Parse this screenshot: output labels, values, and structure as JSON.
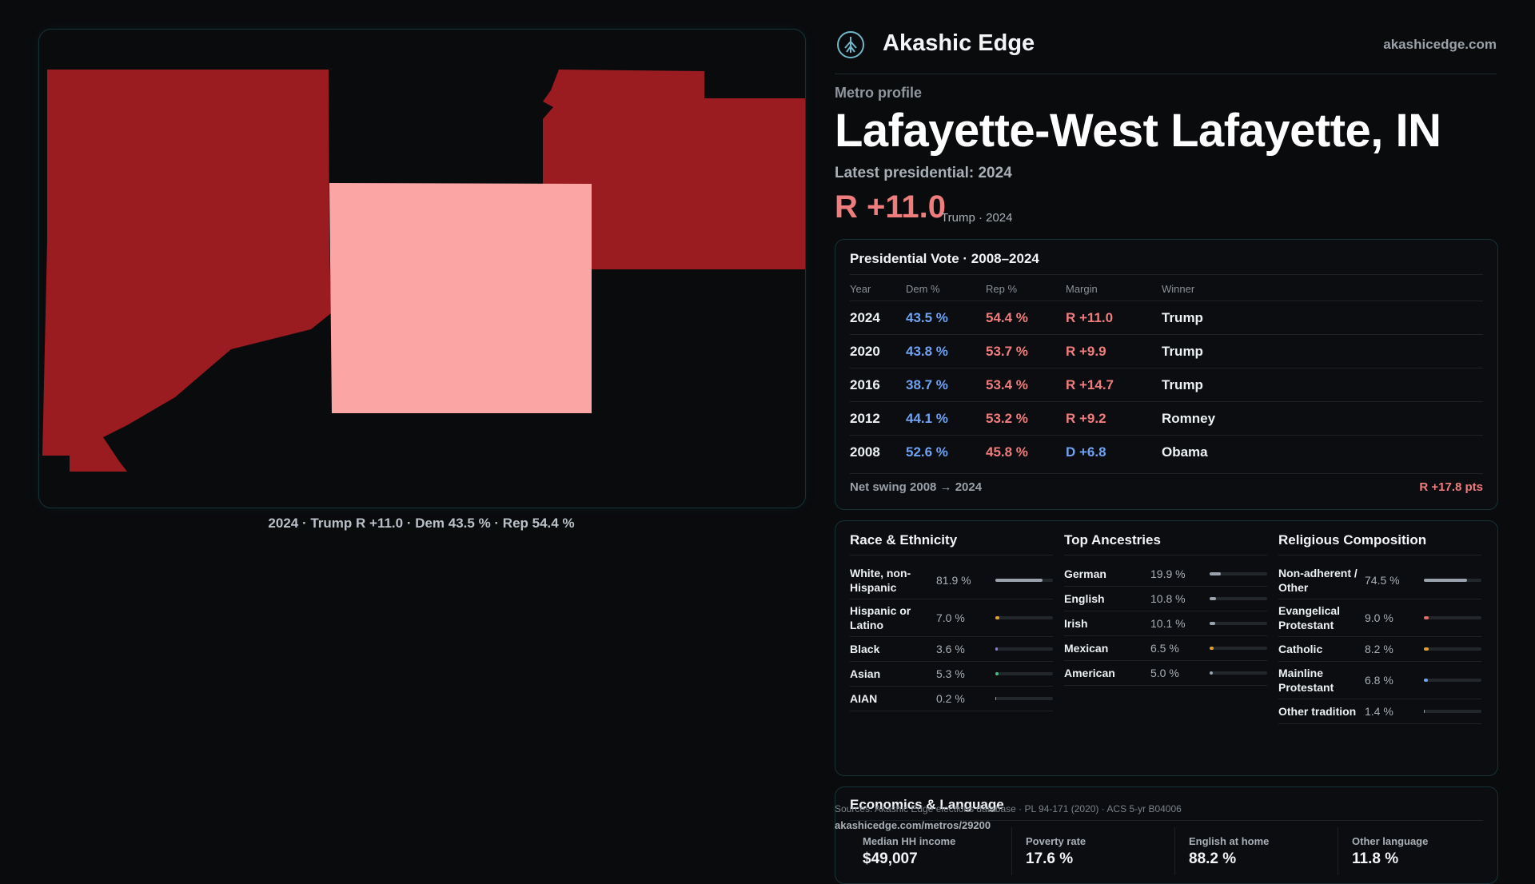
{
  "map": {
    "caption": "2024 · Trump R +11.0 · Dem 43.5 % · Rep 54.4 %",
    "colors": {
      "dark_red": "#9b1c20",
      "light_red": "#fca5a5"
    }
  },
  "header": {
    "brand": "Akashic Edge",
    "site": "akashicedge.com",
    "logo_icon": "tree-emblem-icon"
  },
  "profile": {
    "eyebrow": "Metro profile",
    "title": "Lafayette-West Lafayette, IN",
    "latest_label": "Latest presidential: 2024",
    "margin": "R +11.0",
    "margin_sub": "Trump · 2024"
  },
  "vote": {
    "title": "Presidential Vote · 2008–2024",
    "headers": [
      "Year",
      "Dem %",
      "Rep %",
      "Margin",
      "Winner"
    ],
    "rows": [
      {
        "year": "2024",
        "dem": "43.5 %",
        "rep": "54.4 %",
        "margin": "R +11.0",
        "winner": "Trump",
        "party": "R"
      },
      {
        "year": "2020",
        "dem": "43.8 %",
        "rep": "53.7 %",
        "margin": "R +9.9",
        "winner": "Trump",
        "party": "R"
      },
      {
        "year": "2016",
        "dem": "38.7 %",
        "rep": "53.4 %",
        "margin": "R +14.7",
        "winner": "Trump",
        "party": "R"
      },
      {
        "year": "2012",
        "dem": "44.1 %",
        "rep": "53.2 %",
        "margin": "R +9.2",
        "winner": "Romney",
        "party": "R"
      },
      {
        "year": "2008",
        "dem": "52.6 %",
        "rep": "45.8 %",
        "margin": "D +6.8",
        "winner": "Obama",
        "party": "D"
      }
    ],
    "swing_label": "Net swing 2008 → 2024",
    "swing_value": "R +17.8 pts"
  },
  "race": {
    "title": "Race & Ethnicity",
    "items": [
      {
        "label": "White, non-Hispanic",
        "pct": "81.9 %",
        "value": 81.9,
        "color": "#9aa3ad"
      },
      {
        "label": "Hispanic or Latino",
        "pct": "7.0 %",
        "value": 7.0,
        "color": "#e0a030"
      },
      {
        "label": "Black",
        "pct": "3.6 %",
        "value": 3.6,
        "color": "#8b7bd8"
      },
      {
        "label": "Asian",
        "pct": "5.3 %",
        "value": 5.3,
        "color": "#3fbf7f"
      },
      {
        "label": "AIAN",
        "pct": "0.2 %",
        "value": 0.2,
        "color": "#9aa3ad"
      }
    ]
  },
  "ancestry": {
    "title": "Top Ancestries",
    "items": [
      {
        "label": "German",
        "pct": "19.9 %",
        "value": 19.9,
        "color": "#9aa3ad"
      },
      {
        "label": "English",
        "pct": "10.8 %",
        "value": 10.8,
        "color": "#9aa3ad"
      },
      {
        "label": "Irish",
        "pct": "10.1 %",
        "value": 10.1,
        "color": "#9aa3ad"
      },
      {
        "label": "Mexican",
        "pct": "6.5 %",
        "value": 6.5,
        "color": "#e0a030"
      },
      {
        "label": "American",
        "pct": "5.0 %",
        "value": 5.0,
        "color": "#9aa3ad"
      }
    ]
  },
  "religion": {
    "title": "Religious Composition",
    "items": [
      {
        "label": "Non-adherent / Other",
        "pct": "74.5 %",
        "value": 74.5,
        "color": "#9aa3ad"
      },
      {
        "label": "Evangelical Protestant",
        "pct": "9.0 %",
        "value": 9.0,
        "color": "#e06b6b"
      },
      {
        "label": "Catholic",
        "pct": "8.2 %",
        "value": 8.2,
        "color": "#e0a030"
      },
      {
        "label": "Mainline Protestant",
        "pct": "6.8 %",
        "value": 6.8,
        "color": "#6ea2f2"
      },
      {
        "label": "Other tradition",
        "pct": "1.4 %",
        "value": 1.4,
        "color": "#9aa3ad"
      }
    ]
  },
  "econ": {
    "title": "Economics & Language",
    "stats": [
      {
        "label": "Median HH income",
        "value": "$49,007"
      },
      {
        "label": "Poverty rate",
        "value": "17.6 %"
      },
      {
        "label": "English at home",
        "value": "88.2 %"
      },
      {
        "label": "Other language",
        "value": "11.8 %"
      }
    ]
  },
  "footer": {
    "sources": "Sources: Akashic Edge elections database · PL 94-171 (2020) · ACS 5-yr B04006",
    "url": "akashicedge.com/metros/29200"
  }
}
